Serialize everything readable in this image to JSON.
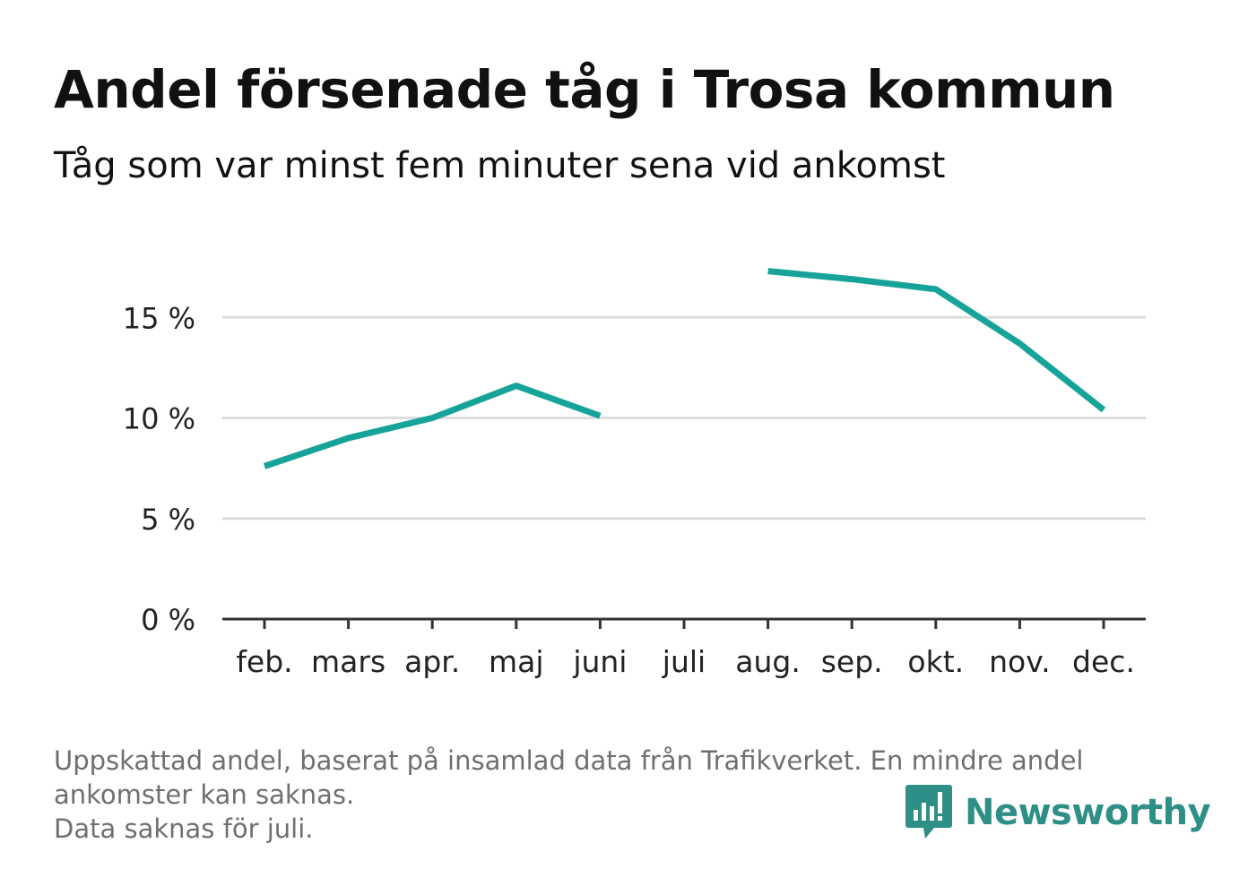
{
  "header": {
    "title": "Andel försenade tåg i Trosa kommun",
    "subtitle": "Tåg som var minst fem minuter sena vid ankomst"
  },
  "chart_data": {
    "type": "line",
    "categories": [
      "feb.",
      "mars",
      "apr.",
      "maj",
      "juni",
      "juli",
      "aug.",
      "sep.",
      "okt.",
      "nov.",
      "dec."
    ],
    "series": [
      {
        "values": [
          7.6,
          9.0,
          10.0,
          11.6,
          10.1,
          null,
          17.3,
          16.9,
          16.4,
          13.7,
          10.4
        ],
        "color": "#16a399"
      }
    ],
    "yticks": [
      0,
      5,
      10,
      15
    ],
    "ytick_labels": [
      "0 %",
      "5 %",
      "10 %",
      "15 %"
    ],
    "ylim": [
      0,
      20
    ],
    "grid": true
  },
  "footnote": {
    "line1": "Uppskattad andel, baserat på insamlad data från Trafikverket. En mindre andel",
    "line2": "ankomster kan saknas.",
    "line3": "Data saknas för juli."
  },
  "brand": {
    "name": "Newsworthy",
    "logo_icon": "newsworthy-logo-icon",
    "color": "#2e8f86"
  }
}
